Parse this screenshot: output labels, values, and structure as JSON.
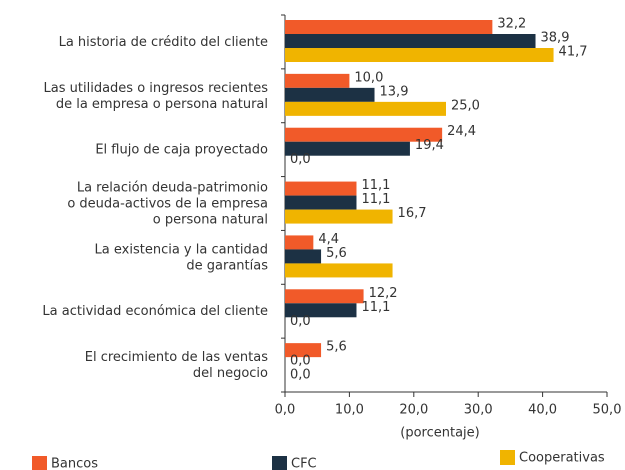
{
  "chart_data": {
    "type": "bar",
    "orientation": "horizontal",
    "categories": [
      "La historia de crédito del cliente",
      "Las utilidades o ingresos recientes\nde la empresa o persona natural",
      "El flujo de caja proyectado",
      "La relación deuda-patrimonio\no deuda-activos de la empresa\no persona natural",
      "La existencia y la cantidad\nde garantías",
      "La actividad económica del cliente",
      "El crecimiento de las ventas\ndel negocio"
    ],
    "series": [
      {
        "name": "Bancos",
        "color": "#f15a29",
        "values": [
          32.2,
          10.0,
          24.4,
          11.1,
          4.4,
          12.2,
          5.6
        ],
        "value_labels": [
          "32,2",
          "10,0",
          "24,4",
          "11,1",
          "4,4",
          "12,2",
          "5,6"
        ]
      },
      {
        "name": "CFC",
        "color": "#1c3144",
        "values": [
          38.9,
          13.9,
          19.4,
          11.1,
          5.6,
          11.1,
          0.0
        ],
        "value_labels": [
          "38,9",
          "13,9",
          "19,4",
          "11,1",
          "5,6",
          "11,1",
          "0,0"
        ]
      },
      {
        "name": "Cooperativas",
        "color": "#f0b400",
        "values": [
          41.7,
          25.0,
          0.0,
          16.7,
          16.7,
          0.0,
          0.0
        ],
        "value_labels": [
          "41,7",
          "25,0",
          "0,0",
          "16,7",
          null,
          "0,0",
          "0,0"
        ]
      }
    ],
    "xlabel": "(porcentaje)",
    "xlim": [
      0,
      50
    ],
    "xticks": [
      {
        "value": 0,
        "label": "0,0"
      },
      {
        "value": 10,
        "label": "10,0"
      },
      {
        "value": 20,
        "label": "20,0"
      },
      {
        "value": 30,
        "label": "30,0"
      },
      {
        "value": 40,
        "label": "40,0"
      },
      {
        "value": 50,
        "label": "50,0"
      }
    ],
    "legend": "bottom"
  }
}
